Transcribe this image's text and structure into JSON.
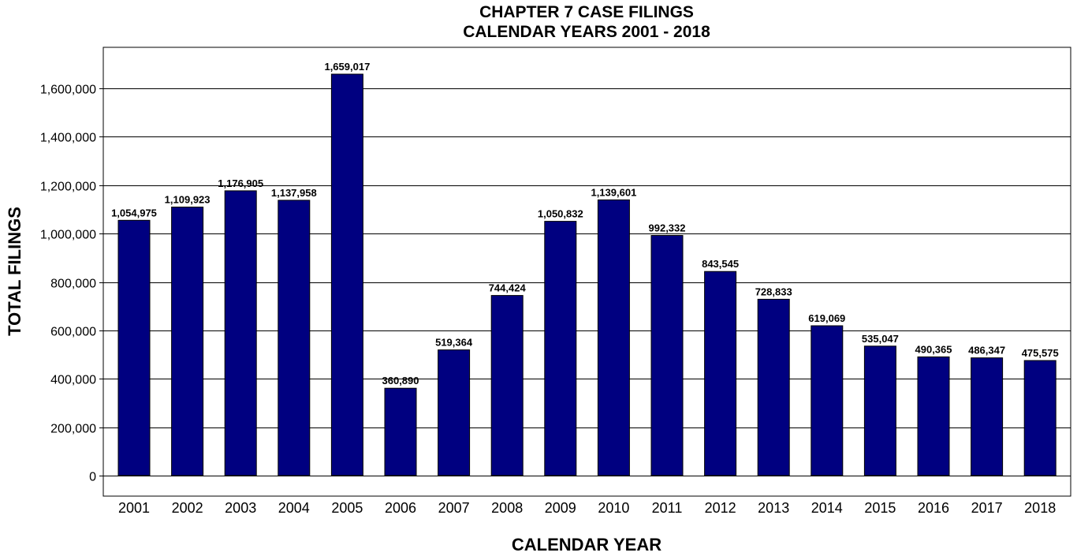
{
  "chart_data": {
    "type": "bar",
    "title": "CHAPTER 7 CASE FILINGS",
    "subtitle": "CALENDAR YEARS 2001 - 2018",
    "xlabel": "CALENDAR YEAR",
    "ylabel": "TOTAL FILINGS",
    "categories": [
      "2001",
      "2002",
      "2003",
      "2004",
      "2005",
      "2006",
      "2007",
      "2008",
      "2009",
      "2010",
      "2011",
      "2012",
      "2013",
      "2014",
      "2015",
      "2016",
      "2017",
      "2018"
    ],
    "values": [
      1054975,
      1109923,
      1176905,
      1137958,
      1659017,
      360890,
      519364,
      744424,
      1050832,
      1139601,
      992332,
      843545,
      728833,
      619069,
      535047,
      490365,
      486347,
      475575
    ],
    "data_labels": [
      "1,054,975",
      "1,109,923",
      "1,176,905",
      "1,137,958",
      "1,659,017",
      "360,890",
      "519,364",
      "744,424",
      "1,050,832",
      "1,139,601",
      "992,332",
      "843,545",
      "728,833",
      "619,069",
      "535,047",
      "490,365",
      "486,347",
      "475,575"
    ],
    "y_ticks": [
      0,
      200000,
      400000,
      600000,
      800000,
      1000000,
      1200000,
      1400000,
      1600000
    ],
    "y_tick_labels": [
      "0",
      "200,000",
      "400,000",
      "600,000",
      "800,000",
      "1,000,000",
      "1,200,000",
      "1,400,000",
      "1,600,000"
    ],
    "ylim": [
      -85000,
      1770000
    ],
    "grid": true,
    "legend": "none",
    "colors": {
      "bar": "#000080",
      "grid": "#000000",
      "background": "#ffffff"
    }
  }
}
